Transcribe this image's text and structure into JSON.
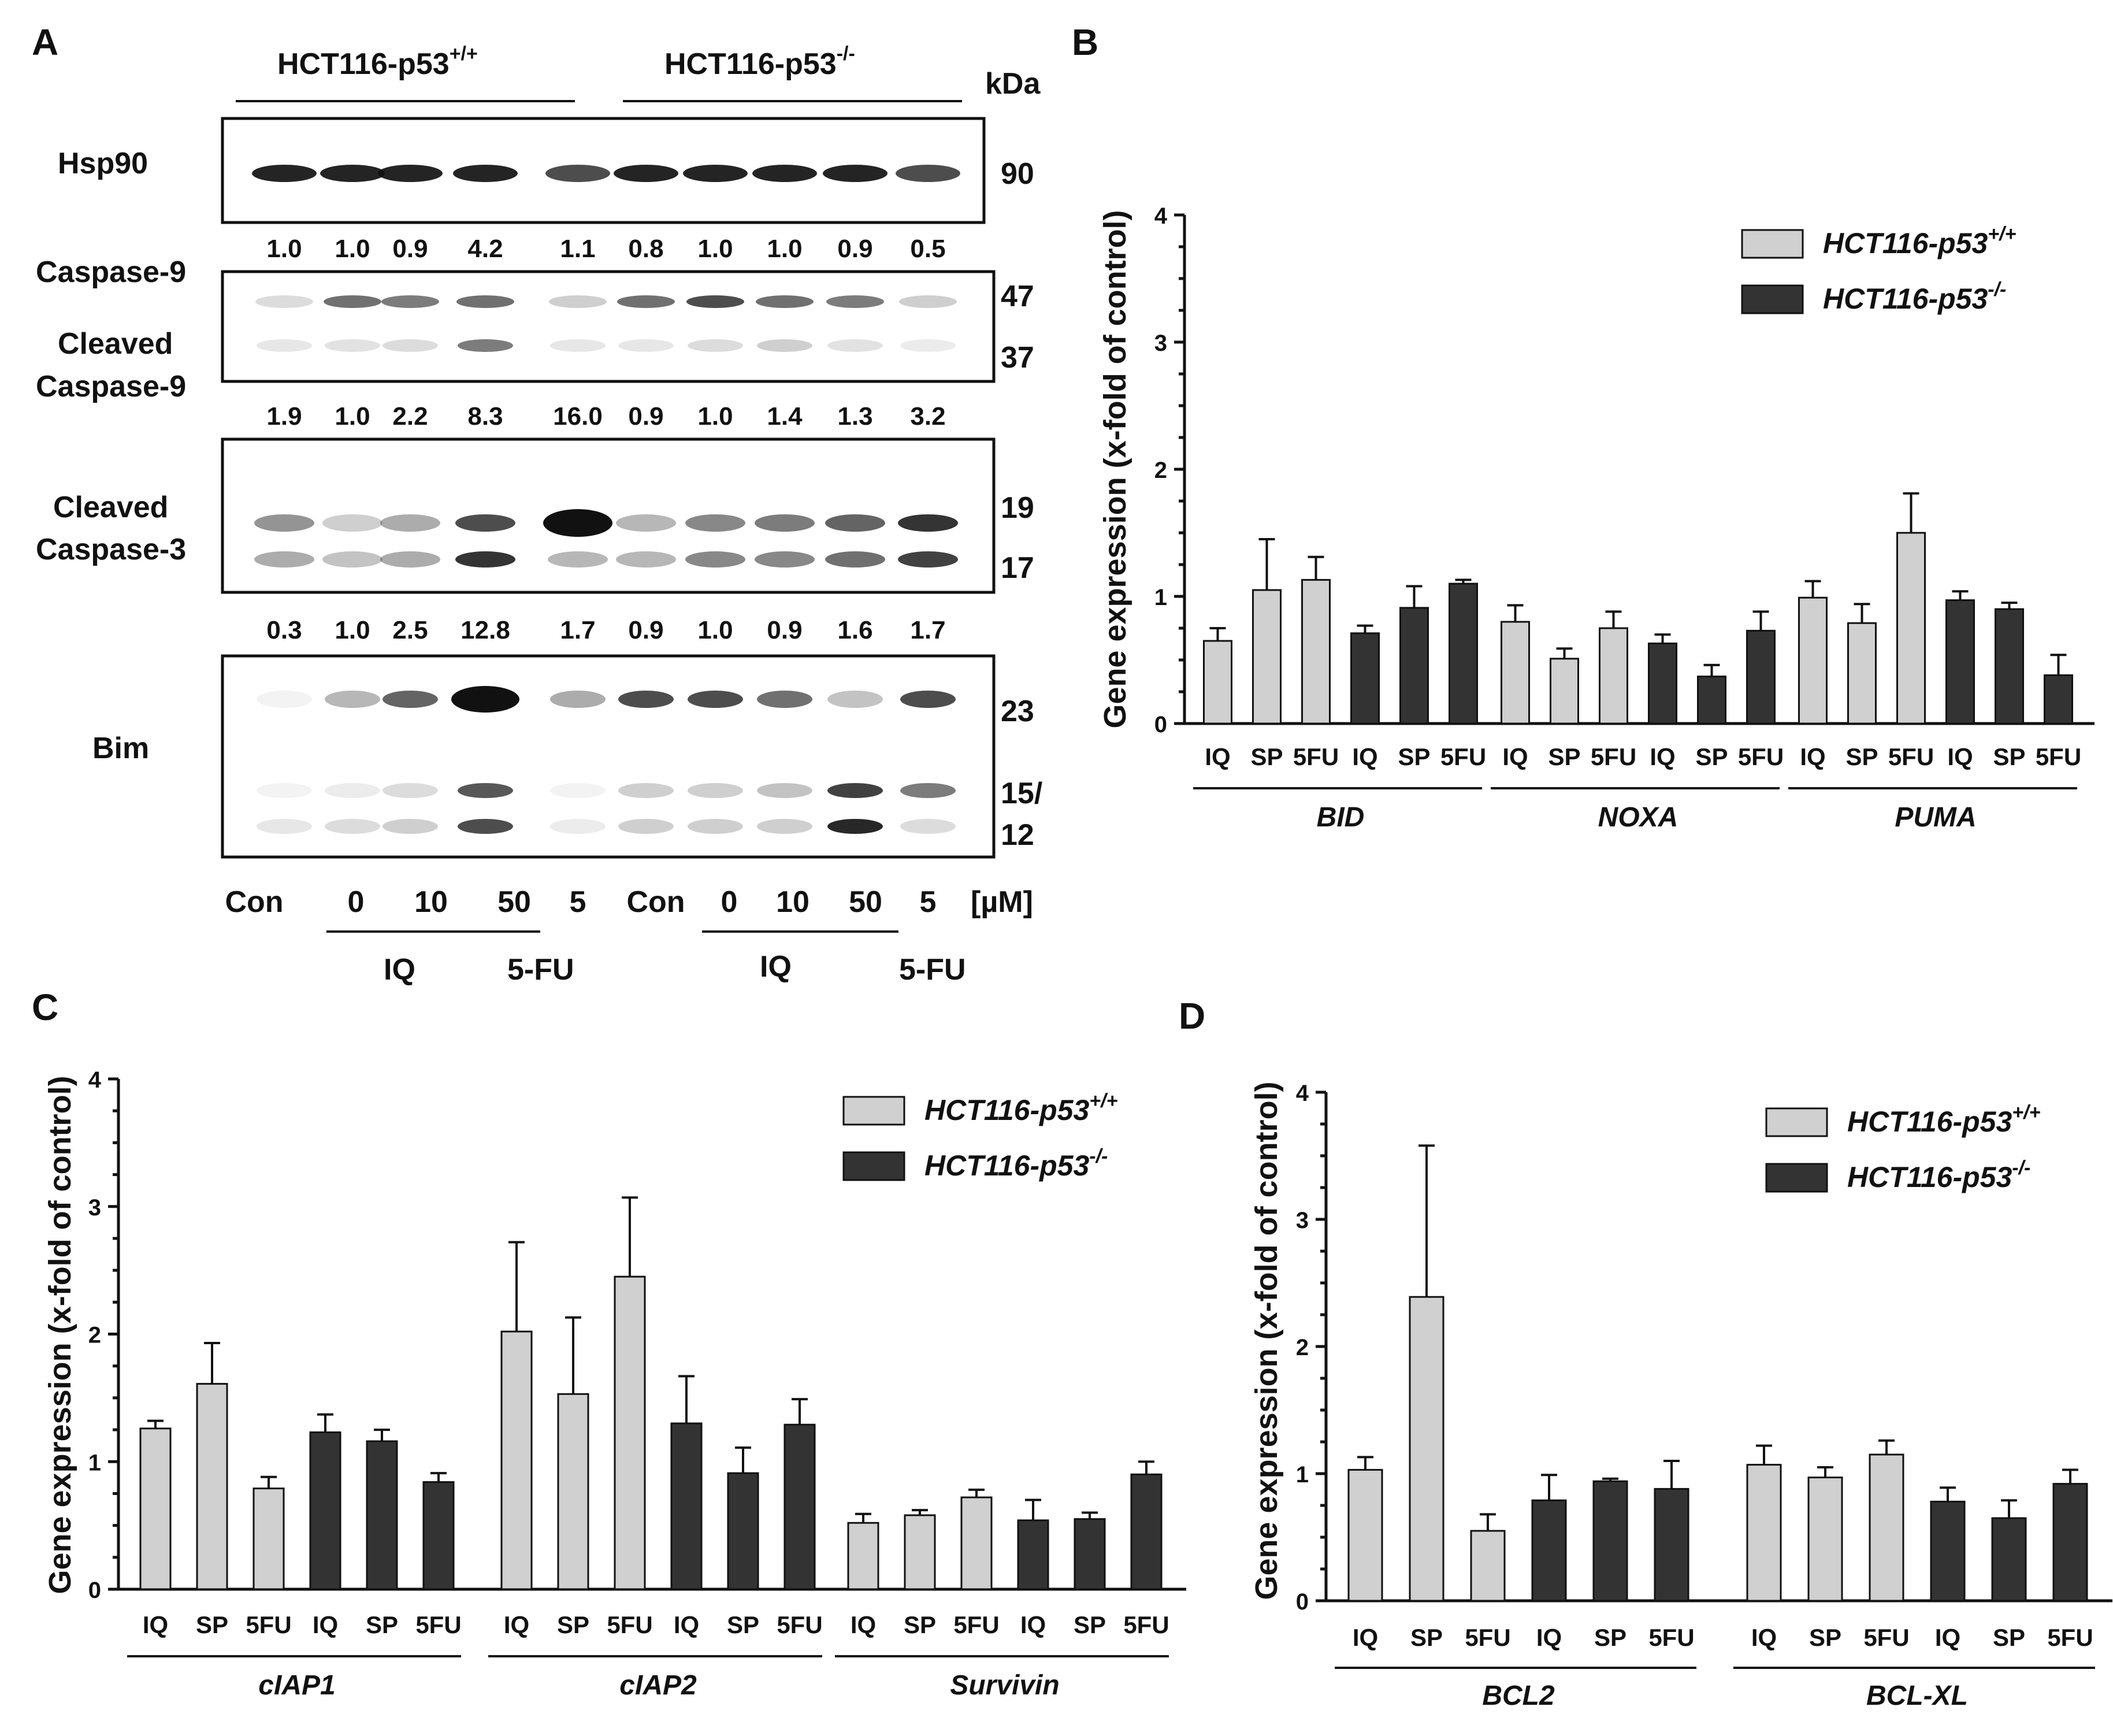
{
  "colors": {
    "wt": "#d0d0d0",
    "ko": "#333333",
    "axis": "#111111"
  },
  "panelA": {
    "letter": "A",
    "group_wt": "HCT116-p53",
    "group_wt_sup": "+/+",
    "group_ko": "HCT116-p53",
    "group_ko_sup": "-/-",
    "kda": "kDa",
    "blots": [
      {
        "label1": "Hsp90",
        "label2": "",
        "markers": [
          "90"
        ]
      },
      {
        "label1": "Caspase-9",
        "label2": "Cleaved",
        "label3": "Caspase-9",
        "markers": [
          "47",
          "37"
        ]
      },
      {
        "label1": "Cleaved",
        "label2": "Caspase-3",
        "markers": [
          "19",
          "17"
        ]
      },
      {
        "label1": "Bim",
        "label2": "",
        "markers": [
          "23",
          "15/",
          "12"
        ]
      }
    ],
    "quant_rows": [
      [
        "1.0",
        "1.0",
        "0.9",
        "4.2",
        "1.1",
        "0.8",
        "1.0",
        "1.0",
        "0.9",
        "0.5"
      ],
      [
        "1.9",
        "1.0",
        "2.2",
        "8.3",
        "16.0",
        "0.9",
        "1.0",
        "1.4",
        "1.3",
        "3.2"
      ],
      [
        "0.3",
        "1.0",
        "2.5",
        "12.8",
        "1.7",
        "0.9",
        "1.0",
        "0.9",
        "1.6",
        "1.7"
      ]
    ],
    "lane_labels": [
      "Con",
      "0",
      "10",
      "50",
      "5",
      "Con",
      "0",
      "10",
      "50",
      "5"
    ],
    "unit": "[µM]",
    "treat_iq": "IQ",
    "treat_5fu": "5-FU"
  },
  "chart_data": [
    {
      "id": "B",
      "type": "bar",
      "title": "",
      "ylabel": "Gene expression (x-fold of control)",
      "ylim": [
        0,
        4
      ],
      "yticks": [
        "0",
        "1",
        "2",
        "3",
        "4"
      ],
      "legend": [
        {
          "name": "HCT116-p53",
          "sup": "+/+"
        },
        {
          "name": "HCT116-p53",
          "sup": "-/-"
        }
      ],
      "bar_labels": [
        "IQ",
        "SP",
        "5FU",
        "IQ",
        "SP",
        "5FU"
      ],
      "groups": [
        {
          "gene": "BID",
          "values": [
            0.65,
            1.05,
            1.13,
            0.71,
            0.91,
            1.1
          ],
          "errors": [
            0.1,
            0.4,
            0.18,
            0.06,
            0.17,
            0.03
          ]
        },
        {
          "gene": "NOXA",
          "values": [
            0.8,
            0.51,
            0.75,
            0.63,
            0.37,
            0.73
          ],
          "errors": [
            0.13,
            0.08,
            0.13,
            0.07,
            0.09,
            0.15
          ]
        },
        {
          "gene": "PUMA",
          "values": [
            0.99,
            0.79,
            1.5,
            0.97,
            0.9,
            0.38
          ],
          "errors": [
            0.13,
            0.15,
            0.31,
            0.07,
            0.05,
            0.16
          ]
        }
      ]
    },
    {
      "id": "C",
      "type": "bar",
      "title": "",
      "ylabel": "Gene expression (x-fold of control)",
      "ylim": [
        0,
        4
      ],
      "yticks": [
        "0",
        "1",
        "2",
        "3",
        "4"
      ],
      "legend": [
        {
          "name": "HCT116-p53",
          "sup": "+/+"
        },
        {
          "name": "HCT116-p53",
          "sup": "-/-"
        }
      ],
      "bar_labels": [
        "IQ",
        "SP",
        "5FU",
        "IQ",
        "SP",
        "5FU"
      ],
      "groups": [
        {
          "gene": "cIAP1",
          "values": [
            1.26,
            1.61,
            0.79,
            1.23,
            1.16,
            0.84
          ],
          "errors": [
            0.06,
            0.32,
            0.09,
            0.14,
            0.09,
            0.07
          ]
        },
        {
          "gene": "cIAP2",
          "values": [
            2.02,
            1.53,
            2.45,
            1.3,
            0.91,
            1.29
          ],
          "errors": [
            0.7,
            0.6,
            0.62,
            0.37,
            0.2,
            0.2
          ]
        },
        {
          "gene": "Survivin",
          "values": [
            0.52,
            0.58,
            0.72,
            0.54,
            0.55,
            0.9
          ],
          "errors": [
            0.07,
            0.04,
            0.06,
            0.16,
            0.05,
            0.1
          ]
        }
      ]
    },
    {
      "id": "D",
      "type": "bar",
      "title": "",
      "ylabel": "Gene expression (x-fold of control)",
      "ylim": [
        0,
        4
      ],
      "yticks": [
        "0",
        "1",
        "2",
        "3",
        "4"
      ],
      "legend": [
        {
          "name": "HCT116-p53",
          "sup": "+/+"
        },
        {
          "name": "HCT116-p53",
          "sup": "-/-"
        }
      ],
      "bar_labels": [
        "IQ",
        "SP",
        "5FU",
        "IQ",
        "SP",
        "5FU"
      ],
      "groups": [
        {
          "gene": "BCL2",
          "values": [
            1.03,
            2.39,
            0.55,
            0.79,
            0.94,
            0.88
          ],
          "errors": [
            0.1,
            1.19,
            0.13,
            0.2,
            0.02,
            0.22
          ]
        },
        {
          "gene": "BCL-XL",
          "values": [
            1.07,
            0.97,
            1.15,
            0.78,
            0.65,
            0.92
          ],
          "errors": [
            0.15,
            0.08,
            0.11,
            0.11,
            0.14,
            0.11
          ]
        }
      ]
    }
  ]
}
